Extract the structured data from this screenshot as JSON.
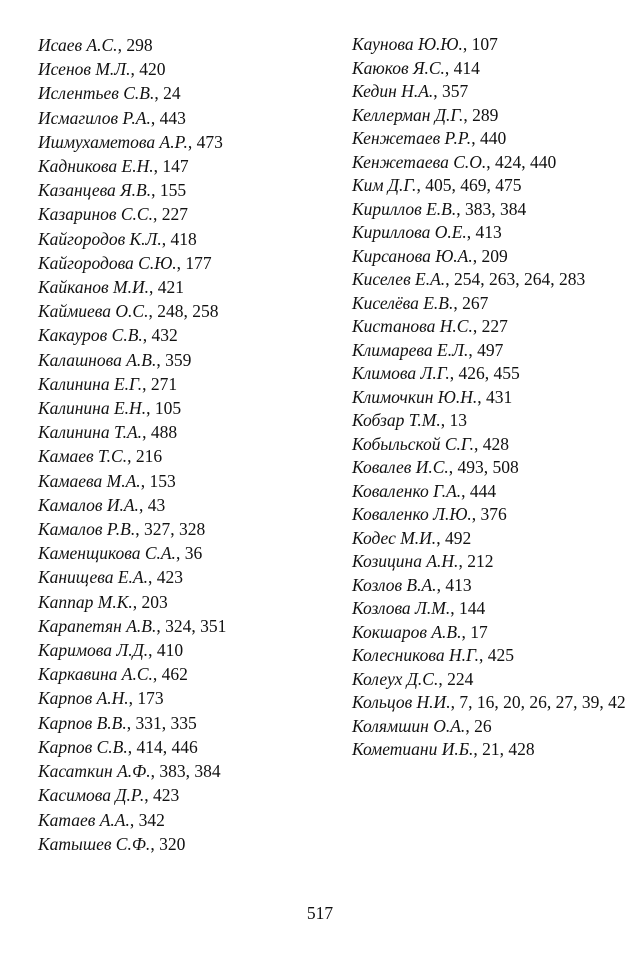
{
  "index": {
    "left": [
      {
        "name": "Исаев А.С.",
        "pages": "298"
      },
      {
        "name": "Исенов М.Л.",
        "pages": "420"
      },
      {
        "name": "Ислентьев С.В.",
        "pages": "24"
      },
      {
        "name": "Исмагилов Р.А.",
        "pages": "443"
      },
      {
        "name": "Ишмухаметова А.Р.",
        "pages": "473"
      },
      {
        "name": "Кадникова Е.Н.",
        "pages": "147"
      },
      {
        "name": "Казанцева Я.В.",
        "pages": "155"
      },
      {
        "name": "Казаринов С.С.",
        "pages": "227"
      },
      {
        "name": "Кайгородов К.Л.",
        "pages": "418"
      },
      {
        "name": "Кайгородова С.Ю.",
        "pages": "177"
      },
      {
        "name": "Кайканов М.И.",
        "pages": "421"
      },
      {
        "name": "Каймиева О.С.",
        "pages": "248, 258"
      },
      {
        "name": "Какауров С.В.",
        "pages": "432"
      },
      {
        "name": "Калашнова А.В.",
        "pages": "359"
      },
      {
        "name": "Калинина Е.Г.",
        "pages": "271"
      },
      {
        "name": "Калинина Е.Н.",
        "pages": "105"
      },
      {
        "name": "Калинина Т.А.",
        "pages": "488"
      },
      {
        "name": "Камаев Т.С.",
        "pages": "216"
      },
      {
        "name": "Камаева М.А.",
        "pages": "153"
      },
      {
        "name": "Камалов И.А.",
        "pages": "43"
      },
      {
        "name": "Камалов Р.В.",
        "pages": "327, 328"
      },
      {
        "name": "Каменщикова С.А.",
        "pages": "36"
      },
      {
        "name": "Канищева Е.А.",
        "pages": "423"
      },
      {
        "name": "Каппар М.К.",
        "pages": "203"
      },
      {
        "name": "Карапетян А.В.",
        "pages": "324, 351"
      },
      {
        "name": "Каримова Л.Д.",
        "pages": "410"
      },
      {
        "name": "Каркавина А.С.",
        "pages": "462"
      },
      {
        "name": "Карпов А.Н.",
        "pages": "173"
      },
      {
        "name": "Карпов В.В.",
        "pages": "331, 335"
      },
      {
        "name": "Карпов С.В.",
        "pages": "414, 446"
      },
      {
        "name": "Касаткин А.Ф.",
        "pages": "383, 384"
      },
      {
        "name": "Касимова Д.Р.",
        "pages": "423"
      },
      {
        "name": "Катаев А.А.",
        "pages": "342"
      },
      {
        "name": "Катышев С.Ф.",
        "pages": "320"
      }
    ],
    "right": [
      {
        "name": "Каунова Ю.Ю.",
        "pages": "107"
      },
      {
        "name": "Каюков Я.С.",
        "pages": "414"
      },
      {
        "name": "Кедин Н.А.",
        "pages": "357"
      },
      {
        "name": "Келлерман Д.Г.",
        "pages": "289"
      },
      {
        "name": "Кенжетаев Р.Р.",
        "pages": "440"
      },
      {
        "name": "Кенжетаева С.О.",
        "pages": "424, 440"
      },
      {
        "name": "Ким Д.Г.",
        "pages": "405, 469, 475"
      },
      {
        "name": "Кириллов Е.В.",
        "pages": "383, 384"
      },
      {
        "name": "Кириллова О.Е.",
        "pages": "413"
      },
      {
        "name": "Кирсанова Ю.А.",
        "pages": "209"
      },
      {
        "name": "Киселев Е.А.",
        "pages": "254, 263, 264, 283"
      },
      {
        "name": "Киселёва Е.В.",
        "pages": "267"
      },
      {
        "name": "Кистанова Н.С.",
        "pages": "227"
      },
      {
        "name": "Климарева Е.Л.",
        "pages": "497"
      },
      {
        "name": "Климова Л.Г.",
        "pages": "426, 455"
      },
      {
        "name": "Климочкин Ю.Н.",
        "pages": "431"
      },
      {
        "name": "Кобзар Т.М.",
        "pages": "13"
      },
      {
        "name": "Кобыльской С.Г.",
        "pages": "428"
      },
      {
        "name": "Ковалев И.С.",
        "pages": "493, 508"
      },
      {
        "name": "Коваленко Г.А.",
        "pages": "444"
      },
      {
        "name": "Коваленко Л.Ю.",
        "pages": "376"
      },
      {
        "name": "Кодес М.И.",
        "pages": "492"
      },
      {
        "name": "Козицина А.Н.",
        "pages": "212"
      },
      {
        "name": "Козлов В.А.",
        "pages": "413"
      },
      {
        "name": "Козлова Л.М.",
        "pages": "144"
      },
      {
        "name": "Кокшаров А.В.",
        "pages": "17"
      },
      {
        "name": "Колесникова Н.Г.",
        "pages": "425"
      },
      {
        "name": "Колеух Д.С.",
        "pages": "224"
      },
      {
        "name": "Кольцов Н.И.",
        "pages": "7, 16, 20, 26, 27, 39, 42"
      },
      {
        "name": "Колямшин О.А.",
        "pages": "26"
      },
      {
        "name": "Кометиани И.Б.",
        "pages": "21, 428"
      }
    ]
  },
  "page_number": "517"
}
